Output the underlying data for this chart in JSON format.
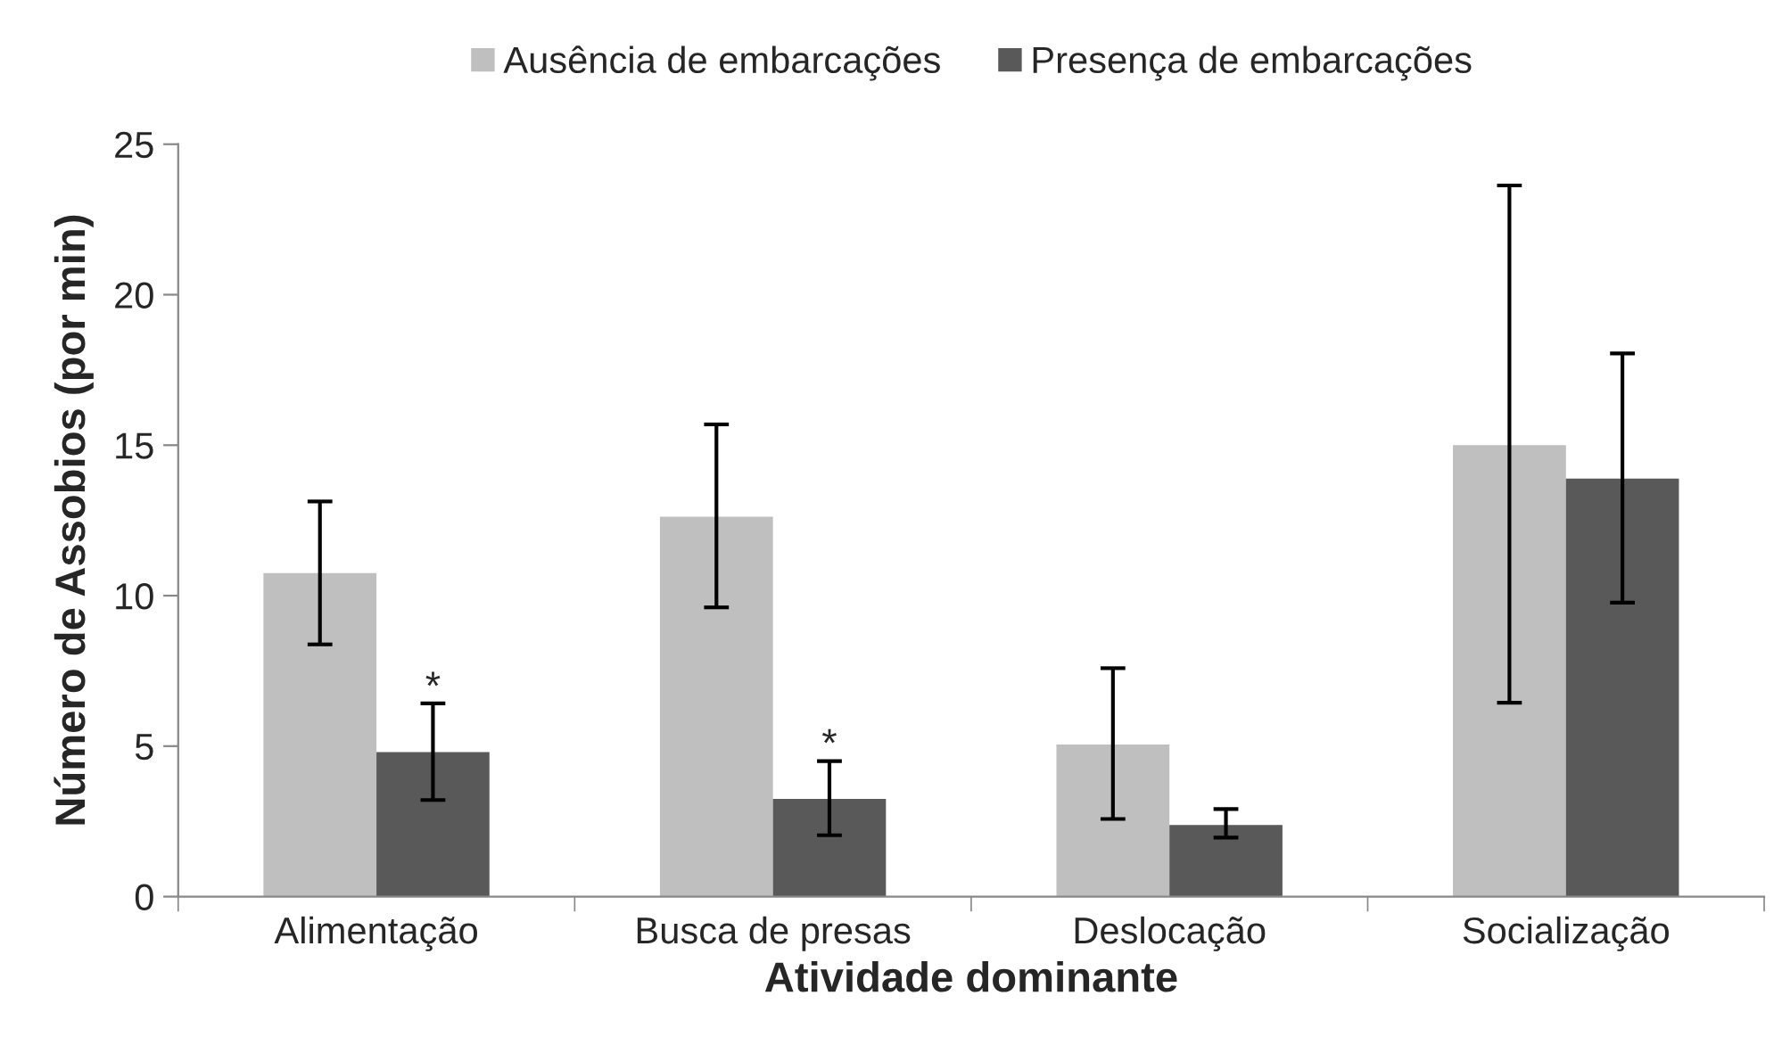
{
  "chart_data": {
    "type": "bar",
    "xlabel": "Atividade dominante",
    "ylabel": "Número de Assobios (por min)",
    "categories": [
      "Alimentação",
      "Busca de presas",
      "Deslocação",
      "Socialização"
    ],
    "series": [
      {
        "name": "Ausência de embarcações",
        "color": "#bfbfbf",
        "values": [
          10.75,
          12.62,
          5.05,
          15.0
        ],
        "errors": [
          [
            8.38,
            13.13
          ],
          [
            9.61,
            15.69
          ],
          [
            2.58,
            7.59
          ],
          [
            6.44,
            23.63
          ]
        ]
      },
      {
        "name": "Presença de embarcações",
        "color": "#595959",
        "values": [
          4.8,
          3.25,
          2.38,
          13.89
        ],
        "errors": [
          [
            3.21,
            6.42
          ],
          [
            2.04,
            4.5
          ],
          [
            1.96,
            2.91
          ],
          [
            9.77,
            18.05
          ]
        ]
      }
    ],
    "annotations": [
      {
        "text": "*",
        "x": "Alimentação",
        "y": 6.9
      },
      {
        "text": "*",
        "x": "Busca de presas",
        "y": 5.0
      }
    ],
    "ylim": [
      0,
      25
    ],
    "yticks": [
      0,
      5,
      10,
      15,
      20,
      25
    ],
    "grid": false,
    "legend": "top"
  }
}
